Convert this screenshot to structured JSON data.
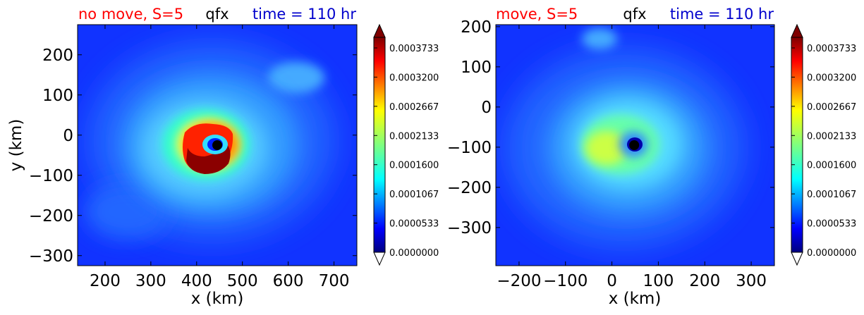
{
  "chart_data": [
    {
      "type": "heatmap",
      "panel": "left",
      "title_left": "no move, S=5",
      "title_center": "qfx",
      "title_right": "time = 110 hr",
      "title_left_color": "#ff0000",
      "title_center_color": "#000000",
      "title_right_color": "#0000cc",
      "xlabel": "x (km)",
      "ylabel": "y (km)",
      "xlim": [
        140,
        750
      ],
      "ylim": [
        -325,
        275
      ],
      "xticks": [
        200,
        300,
        400,
        500,
        600,
        700
      ],
      "xtick_labels": [
        "200",
        "300",
        "400",
        "500",
        "600",
        "700"
      ],
      "yticks": [
        200,
        100,
        0,
        -100,
        -200,
        -300
      ],
      "ytick_labels": [
        "200",
        "100",
        "0",
        "−100",
        "−200",
        "−300"
      ],
      "center": [
        445,
        -25
      ],
      "center_marker_color": "#000000",
      "colorbar_ticks": [
        "0.0003733",
        "0.0003200",
        "0.0002667",
        "0.0002133",
        "0.0001600",
        "0.0001067",
        "0.0000533",
        "0.0000000"
      ]
    },
    {
      "type": "heatmap",
      "panel": "right",
      "title_left": "move, S=5",
      "title_center": "qfx",
      "title_right": "time = 110 hr",
      "title_left_color": "#ff0000",
      "title_center_color": "#000000",
      "title_right_color": "#0000cc",
      "xlabel": "x (km)",
      "ylabel": "",
      "xlim": [
        -250,
        350
      ],
      "ylim": [
        -395,
        205
      ],
      "xticks": [
        -200,
        -100,
        0,
        100,
        200,
        300
      ],
      "xtick_labels": [
        "−200",
        "−100",
        "0",
        "100",
        "200",
        "300"
      ],
      "yticks": [
        200,
        100,
        0,
        -100,
        -200,
        -300
      ],
      "ytick_labels": [
        "200",
        "100",
        "0",
        "−100",
        "−200",
        "−300"
      ],
      "center": [
        48,
        -95
      ],
      "center_marker_color": "#000000",
      "colorbar_ticks": [
        "0.0003733",
        "0.0003200",
        "0.0002667",
        "0.0002133",
        "0.0001600",
        "0.0001067",
        "0.0000533",
        "0.0000000"
      ]
    }
  ]
}
